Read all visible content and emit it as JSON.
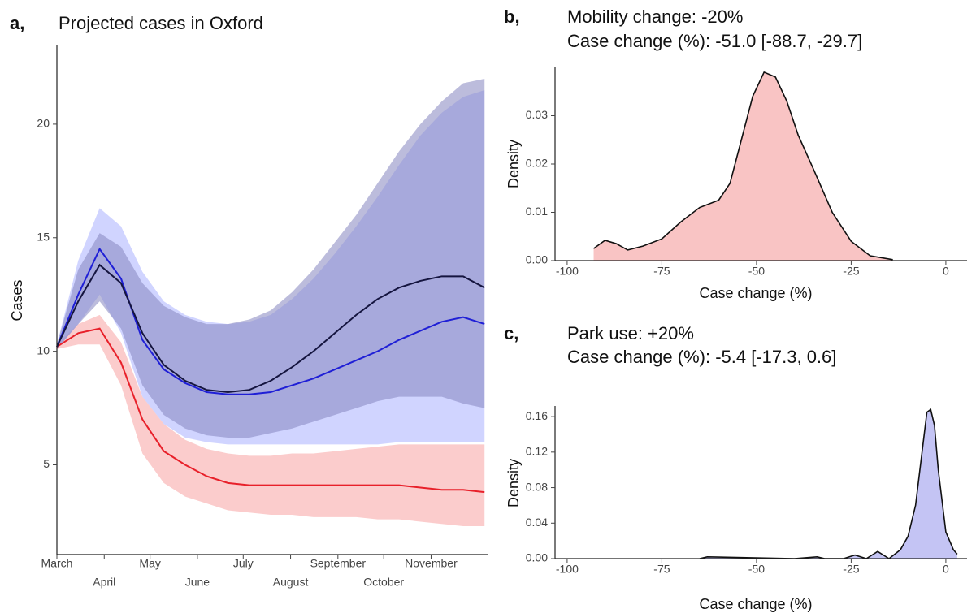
{
  "chart_data": [
    {
      "type": "line",
      "panel_label": "a,",
      "title": "Projected cases in Oxford",
      "y_label": "Cases",
      "x": [
        0,
        14,
        28,
        42,
        56,
        70,
        84,
        98,
        112,
        126,
        140,
        154,
        168,
        182,
        196,
        210,
        224,
        238,
        252,
        266,
        280
      ],
      "xlim": [
        0,
        282
      ],
      "ylim": [
        1.05,
        23.5
      ],
      "yticks": [
        5,
        10,
        15,
        20
      ],
      "xticks": [
        {
          "value": 0,
          "label": "March"
        },
        {
          "value": 31,
          "label": "April"
        },
        {
          "value": 61,
          "label": "May"
        },
        {
          "value": 92,
          "label": "June"
        },
        {
          "value": 122,
          "label": "July"
        },
        {
          "value": 153,
          "label": "August"
        },
        {
          "value": 184,
          "label": "September"
        },
        {
          "value": 214,
          "label": "October"
        },
        {
          "value": 245,
          "label": "November"
        }
      ],
      "series": [
        {
          "color": "#e8202a",
          "band_color": "#f7a3a3",
          "values": [
            10.2,
            10.8,
            11.0,
            9.5,
            7.0,
            5.6,
            5.0,
            4.5,
            4.2,
            4.1,
            4.1,
            4.1,
            4.1,
            4.1,
            4.1,
            4.1,
            4.1,
            4.0,
            3.9,
            3.9,
            3.8
          ],
          "upper": [
            10.3,
            11.2,
            11.6,
            10.4,
            8.0,
            6.8,
            6.1,
            5.7,
            5.5,
            5.4,
            5.4,
            5.5,
            5.5,
            5.6,
            5.7,
            5.8,
            5.9,
            5.9,
            5.9,
            5.9,
            5.9
          ],
          "lower": [
            10.1,
            10.3,
            10.3,
            8.5,
            5.5,
            4.2,
            3.6,
            3.3,
            3.0,
            2.9,
            2.8,
            2.8,
            2.7,
            2.7,
            2.7,
            2.6,
            2.6,
            2.5,
            2.4,
            2.3,
            2.3
          ]
        },
        {
          "color": "#1f1fd6",
          "band_color": "#aab0ff",
          "values": [
            10.2,
            12.5,
            14.5,
            13.2,
            10.5,
            9.2,
            8.6,
            8.2,
            8.1,
            8.1,
            8.2,
            8.5,
            8.8,
            9.2,
            9.6,
            10.0,
            10.5,
            10.9,
            11.3,
            11.5,
            11.2
          ],
          "upper": [
            10.3,
            14.0,
            16.3,
            15.5,
            13.5,
            12.2,
            11.6,
            11.3,
            11.2,
            11.3,
            11.6,
            12.3,
            13.2,
            14.3,
            15.5,
            16.8,
            18.2,
            19.5,
            20.5,
            21.2,
            21.5
          ],
          "lower": [
            10.1,
            11.2,
            12.5,
            10.8,
            8.0,
            6.8,
            6.2,
            6.0,
            5.9,
            5.9,
            5.9,
            5.9,
            5.9,
            5.9,
            5.9,
            5.9,
            6.0,
            6.0,
            6.0,
            6.0,
            6.0
          ]
        },
        {
          "color": "#15153f",
          "band_color": "#8585c0",
          "values": [
            10.2,
            12.2,
            13.8,
            13.0,
            10.8,
            9.4,
            8.7,
            8.3,
            8.2,
            8.3,
            8.7,
            9.3,
            10.0,
            10.8,
            11.6,
            12.3,
            12.8,
            13.1,
            13.3,
            13.3,
            12.8
          ],
          "upper": [
            10.3,
            13.6,
            15.2,
            14.6,
            13.0,
            12.0,
            11.5,
            11.2,
            11.2,
            11.4,
            11.8,
            12.6,
            13.6,
            14.8,
            16.0,
            17.4,
            18.8,
            20.0,
            21.0,
            21.8,
            22.0
          ],
          "lower": [
            10.1,
            11.2,
            12.2,
            11.0,
            8.5,
            7.2,
            6.6,
            6.3,
            6.2,
            6.2,
            6.4,
            6.6,
            6.9,
            7.2,
            7.5,
            7.8,
            8.0,
            8.0,
            8.0,
            7.7,
            7.5
          ]
        }
      ]
    },
    {
      "type": "area",
      "panel_label": "b,",
      "title": "Mobility change: -20%",
      "subtitle": "Case change (%): -51.0 [-88.7, -29.7]",
      "x_label": "Case change (%)",
      "y_label": "Density",
      "color": "#f9c4c4",
      "x": [
        -93,
        -90,
        -87,
        -84,
        -80,
        -75,
        -70,
        -65,
        -60,
        -57,
        -54,
        -51,
        -48,
        -45,
        -42,
        -39,
        -35,
        -30,
        -25,
        -20,
        -14
      ],
      "values": [
        0.0025,
        0.0042,
        0.0035,
        0.0022,
        0.003,
        0.0045,
        0.008,
        0.011,
        0.0125,
        0.016,
        0.025,
        0.034,
        0.039,
        0.038,
        0.033,
        0.026,
        0.019,
        0.01,
        0.004,
        0.001,
        0.0002
      ],
      "xlim": [
        -103.2,
        5.6
      ],
      "ylim": [
        0,
        0.04
      ],
      "xticks": [
        -100,
        -75,
        -50,
        -25,
        0
      ],
      "yticks": [
        {
          "value": 0,
          "label": "0.00"
        },
        0.01,
        0.02,
        0.03
      ]
    },
    {
      "type": "area",
      "panel_label": "c,",
      "title": "Park use: +20%",
      "subtitle": "Case change (%): -5.4 [-17.3, 0.6]",
      "x_label": "Case change (%)",
      "y_label": "Density",
      "color": "#c4c4f4",
      "x": [
        -65,
        -63,
        -40,
        -34,
        -32,
        -27,
        -24,
        -21,
        -18,
        -15,
        -12,
        -10,
        -8,
        -6,
        -5,
        -4,
        -3,
        -2,
        0,
        2,
        3
      ],
      "values": [
        0,
        0.002,
        0,
        0.002,
        0,
        0,
        0.004,
        0,
        0.008,
        0,
        0.01,
        0.025,
        0.06,
        0.13,
        0.165,
        0.168,
        0.15,
        0.1,
        0.03,
        0.01,
        0.005
      ],
      "xlim": [
        -103.2,
        5.6
      ],
      "ylim": [
        0,
        0.172
      ],
      "xticks": [
        -100,
        -75,
        -50,
        -25,
        0
      ],
      "yticks": [
        {
          "value": 0,
          "label": "0.00"
        },
        0.04,
        0.08,
        0.12,
        0.16
      ]
    }
  ]
}
